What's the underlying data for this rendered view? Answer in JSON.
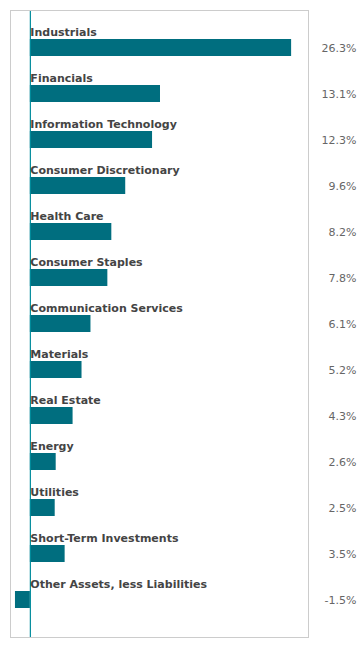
{
  "chart_data": {
    "type": "bar",
    "orientation": "horizontal",
    "categories": [
      "Industrials",
      "Financials",
      "Information Technology",
      "Consumer Discretionary",
      "Health Care",
      "Consumer Staples",
      "Communication Services",
      "Materials",
      "Real Estate",
      "Energy",
      "Utilities",
      "Short-Term Investments",
      "Other Assets, less Liabilities"
    ],
    "values": [
      26.3,
      13.1,
      12.3,
      9.6,
      8.2,
      7.8,
      6.1,
      5.2,
      4.3,
      2.6,
      2.5,
      3.5,
      -1.5
    ],
    "value_labels": [
      "26.3%",
      "13.1%",
      "12.3%",
      "9.6%",
      "8.2%",
      "7.8%",
      "6.1%",
      "5.2%",
      "4.3%",
      "2.6%",
      "2.5%",
      "3.5%",
      "-1.5%"
    ],
    "color": "#006E7F",
    "xlim": [
      -2,
      28
    ],
    "data_labels": true,
    "tick_labels": false,
    "grid": false
  }
}
